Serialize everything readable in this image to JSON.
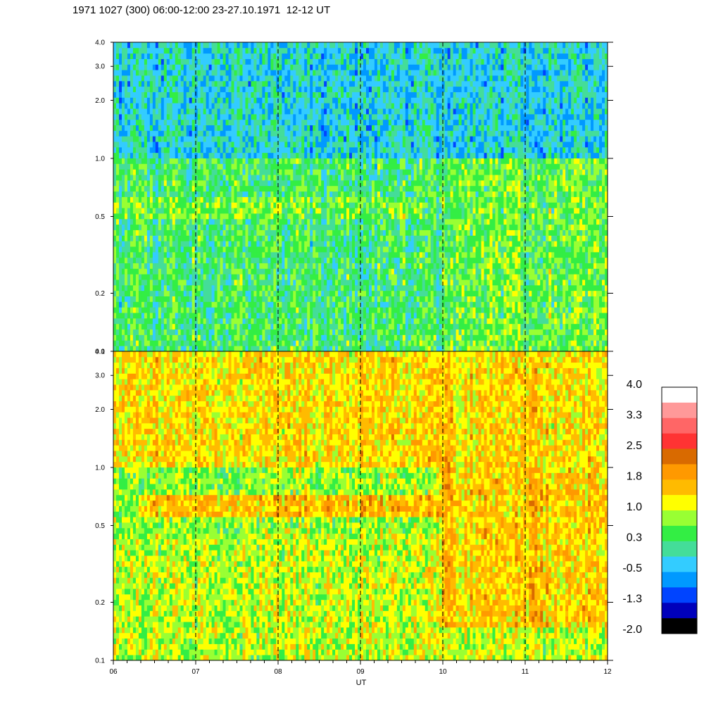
{
  "title": "1971 1027 (300) 06:00-12:00 23-27.10.1971  12-12 UT",
  "chart_data": {
    "type": "heatmap",
    "title": "1971 1027 (300) 06:00-12:00 23-27.10.1971  12-12 UT",
    "xlabel": "UT",
    "x_ticks": [
      "06",
      "07",
      "08",
      "09",
      "10",
      "11",
      "12"
    ],
    "xlim": [
      6,
      12
    ],
    "y_scale": "log",
    "ylim": [
      0.1,
      4.0
    ],
    "y_ticks": [
      "0.1",
      "0.2",
      "0.5",
      "1.0",
      "2.0",
      "3.0",
      "4.0"
    ],
    "vertical_dashed_lines_at": [
      7,
      8,
      9,
      10,
      11
    ],
    "panels": [
      {
        "name": "top",
        "dominant_levels": [
          0.3,
          -0.5,
          0.6
        ],
        "features": [
          {
            "x_range": [
              6.0,
              12.0
            ],
            "y_range": [
              0.1,
              0.25
            ],
            "level": 0.3
          },
          {
            "x_range": [
              6.0,
              12.0
            ],
            "y_range": [
              0.25,
              0.5
            ],
            "level": 0.3
          },
          {
            "x_range": [
              6.0,
              9.8
            ],
            "y_range": [
              0.5,
              0.65
            ],
            "level": 0.6
          },
          {
            "x_range": [
              6.0,
              12.0
            ],
            "y_range": [
              1.0,
              4.0
            ],
            "level": -0.2
          },
          {
            "x_range": [
              10.0,
              12.0
            ],
            "y_range": [
              0.1,
              1.0
            ],
            "level": 0.6
          }
        ]
      },
      {
        "name": "bottom",
        "dominant_levels": [
          1.0,
          1.4,
          1.8
        ],
        "features": [
          {
            "x_range": [
              6.0,
              12.0
            ],
            "y_range": [
              0.1,
              0.45
            ],
            "level": 1.0
          },
          {
            "x_range": [
              6.0,
              12.0
            ],
            "y_range": [
              0.45,
              1.0
            ],
            "level": 0.8
          },
          {
            "x_range": [
              6.3,
              10.0
            ],
            "y_range": [
              0.55,
              0.72
            ],
            "level": 1.6
          },
          {
            "x_range": [
              6.0,
              12.0
            ],
            "y_range": [
              1.0,
              4.0
            ],
            "level": 1.4
          },
          {
            "x_range": [
              10.0,
              12.0
            ],
            "y_range": [
              0.15,
              1.0
            ],
            "level": 1.5
          }
        ]
      }
    ],
    "colorbar": {
      "labels": [
        "4.0",
        "3.3",
        "2.5",
        "1.8",
        "1.0",
        "0.3",
        "-0.5",
        "-1.3",
        "-2.0"
      ],
      "min": -2.0,
      "max": 4.0,
      "colors_top_to_bottom": [
        "#ffffff",
        "#ff9999",
        "#ff6666",
        "#ff3333",
        "#d96a00",
        "#ff9900",
        "#ffbb00",
        "#ffff00",
        "#99ff33",
        "#33ee44",
        "#44dd99",
        "#33ccff",
        "#0099ff",
        "#0044ff",
        "#0000bb",
        "#000000"
      ]
    }
  }
}
